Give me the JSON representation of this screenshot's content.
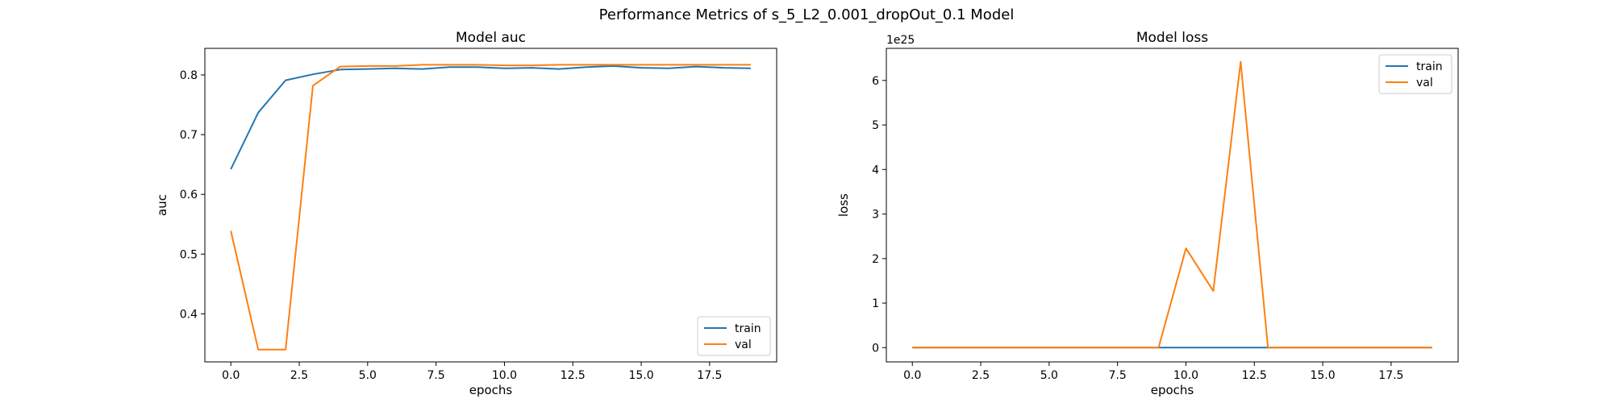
{
  "figure": {
    "title": "Performance Metrics of s_5_L2_0.001_dropOut_0.1 Model"
  },
  "colors": {
    "train": "#1f77b4",
    "val": "#ff7f0e"
  },
  "chart_data": [
    {
      "type": "line",
      "title": "Model auc",
      "xlabel": "epochs",
      "ylabel": "auc",
      "xlim": [
        -0.95,
        19.95
      ],
      "ylim": [
        0.3195,
        0.8445
      ],
      "xticks": [
        0.0,
        2.5,
        5.0,
        7.5,
        10.0,
        12.5,
        15.0,
        17.5
      ],
      "xtick_labels": [
        "0.0",
        "2.5",
        "5.0",
        "7.5",
        "10.0",
        "12.5",
        "15.0",
        "17.5"
      ],
      "yticks": [
        0.4,
        0.5,
        0.6,
        0.7,
        0.8
      ],
      "ytick_labels": [
        "0.4",
        "0.5",
        "0.6",
        "0.7",
        "0.8"
      ],
      "legend_position": "lower right",
      "x": [
        0,
        1,
        2,
        3,
        4,
        5,
        6,
        7,
        8,
        9,
        10,
        11,
        12,
        13,
        14,
        15,
        16,
        17,
        18,
        19
      ],
      "series": [
        {
          "name": "train",
          "color_key": "train",
          "values": [
            0.642,
            0.737,
            0.791,
            0.801,
            0.809,
            0.81,
            0.811,
            0.81,
            0.813,
            0.813,
            0.811,
            0.812,
            0.81,
            0.813,
            0.815,
            0.812,
            0.811,
            0.814,
            0.812,
            0.811
          ]
        },
        {
          "name": "val",
          "color_key": "val",
          "values": [
            0.539,
            0.34,
            0.34,
            0.782,
            0.814,
            0.815,
            0.815,
            0.817,
            0.817,
            0.817,
            0.816,
            0.816,
            0.817,
            0.817,
            0.817,
            0.817,
            0.817,
            0.817,
            0.817,
            0.817
          ]
        }
      ]
    },
    {
      "type": "line",
      "title": "Model loss",
      "xlabel": "epochs",
      "ylabel": "loss",
      "y_offset_label": "1e25",
      "xlim": [
        -0.95,
        19.95
      ],
      "ylim": [
        -0.32,
        6.72
      ],
      "xticks": [
        0.0,
        2.5,
        5.0,
        7.5,
        10.0,
        12.5,
        15.0,
        17.5
      ],
      "xtick_labels": [
        "0.0",
        "2.5",
        "5.0",
        "7.5",
        "10.0",
        "12.5",
        "15.0",
        "17.5"
      ],
      "yticks": [
        0,
        1,
        2,
        3,
        4,
        5,
        6
      ],
      "ytick_labels": [
        "0",
        "1",
        "2",
        "3",
        "4",
        "5",
        "6"
      ],
      "legend_position": "upper right",
      "x": [
        0,
        1,
        2,
        3,
        4,
        5,
        6,
        7,
        8,
        9,
        10,
        11,
        12,
        13,
        14,
        15,
        16,
        17,
        18,
        19
      ],
      "series": [
        {
          "name": "train",
          "color_key": "train",
          "values": [
            0,
            0,
            0,
            0,
            0,
            0,
            0,
            0,
            0,
            0,
            0,
            0,
            0,
            0,
            0,
            0,
            0,
            0,
            0,
            0
          ]
        },
        {
          "name": "val",
          "color_key": "val",
          "values": [
            0,
            0,
            0,
            0,
            0,
            0,
            0,
            0,
            0,
            0,
            2.23,
            1.27,
            6.42,
            0,
            0,
            0,
            0,
            0,
            0,
            0
          ]
        }
      ]
    }
  ]
}
